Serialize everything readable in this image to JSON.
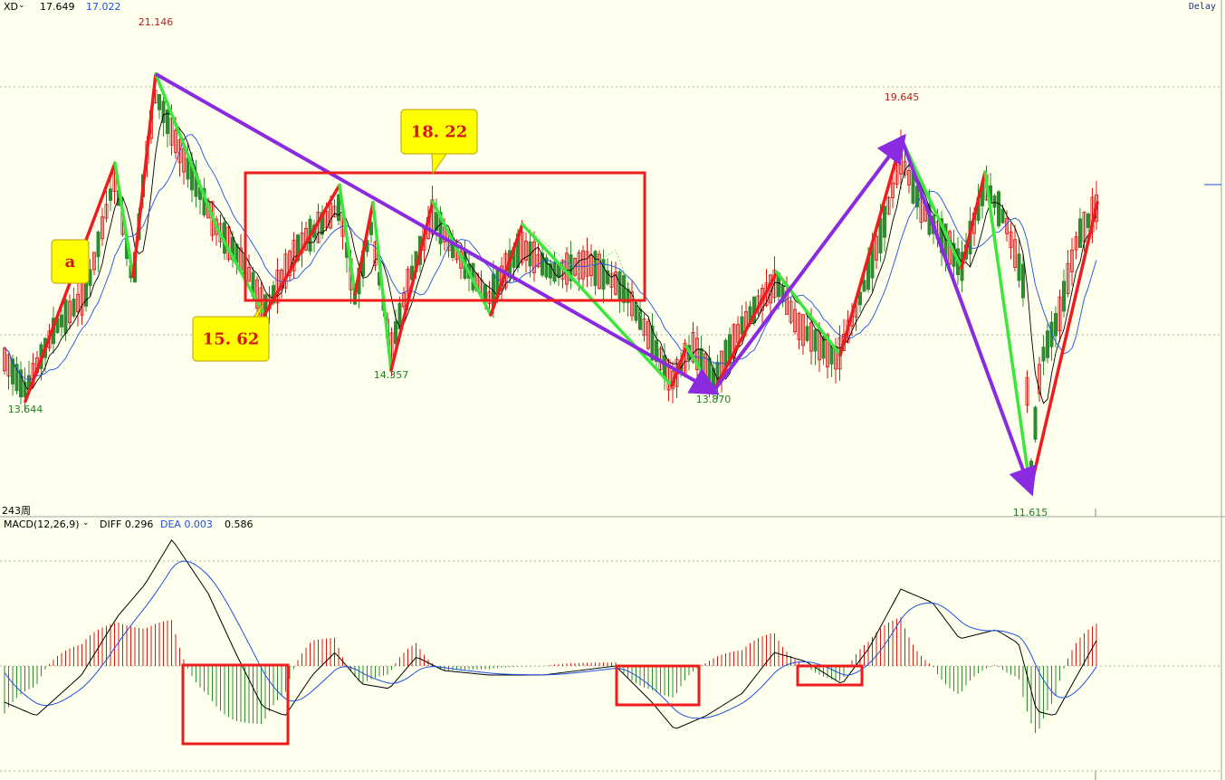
{
  "header": {
    "symbol": "XD",
    "price": "17.649",
    "price2": "17.022",
    "delay": "Delay",
    "period": "243周"
  },
  "macd_header": {
    "name": "MACD(12,26,9)",
    "diff_label": "DIFF 0.296",
    "dea_label": "DEA 0.003",
    "macd_value": "0.586"
  },
  "colors": {
    "background": "#FFFFEE",
    "up": "#D41818",
    "down": "#2E8B2E",
    "ma_black": "#000000",
    "ma_blue": "#1E50E0",
    "trend_purple": "#8A2BE2",
    "zig_red": "#EE1C1C",
    "zig_green": "#3CE63C",
    "callout": "#FFFF00"
  },
  "chart_data": {
    "type": "candlestick",
    "y_range": [
      11.0,
      21.7
    ],
    "macd_range": [
      -1.9,
      2.5
    ],
    "pivots": [
      {
        "label": "13.644",
        "value": 13.644,
        "kind": "low"
      },
      {
        "label": "21.146",
        "value": 21.146,
        "kind": "high"
      },
      {
        "label": "14.357",
        "value": 14.357,
        "kind": "low"
      },
      {
        "label": "13.870",
        "value": 13.87,
        "kind": "low"
      },
      {
        "label": "19.645",
        "value": 19.645,
        "kind": "high"
      },
      {
        "label": "11.615",
        "value": 11.615,
        "kind": "low"
      }
    ],
    "callouts": [
      "a",
      "18. 22",
      "15. 62"
    ],
    "zigzag_red": [
      [
        [
          13.644,
          0
        ],
        [
          19.1,
          1
        ]
      ],
      [
        [
          16.5,
          0
        ],
        [
          21.146,
          1
        ]
      ],
      [
        [
          15.62,
          0
        ],
        [
          18.6,
          1
        ]
      ],
      [
        [
          16.1,
          0
        ],
        [
          18.2,
          1
        ]
      ],
      [
        [
          14.357,
          0
        ],
        [
          18.22,
          1
        ]
      ],
      [
        [
          15.62,
          0
        ],
        [
          17.7,
          1
        ]
      ],
      [
        [
          14.0,
          0
        ],
        [
          14.9,
          1
        ]
      ],
      [
        [
          13.87,
          0
        ],
        [
          16.6,
          1
        ]
      ],
      [
        [
          14.7,
          0
        ],
        [
          19.645,
          1
        ]
      ],
      [
        [
          17.0,
          0
        ],
        [
          18.9,
          1
        ]
      ],
      [
        [
          11.615,
          0
        ],
        [
          18.2,
          1
        ]
      ]
    ]
  }
}
